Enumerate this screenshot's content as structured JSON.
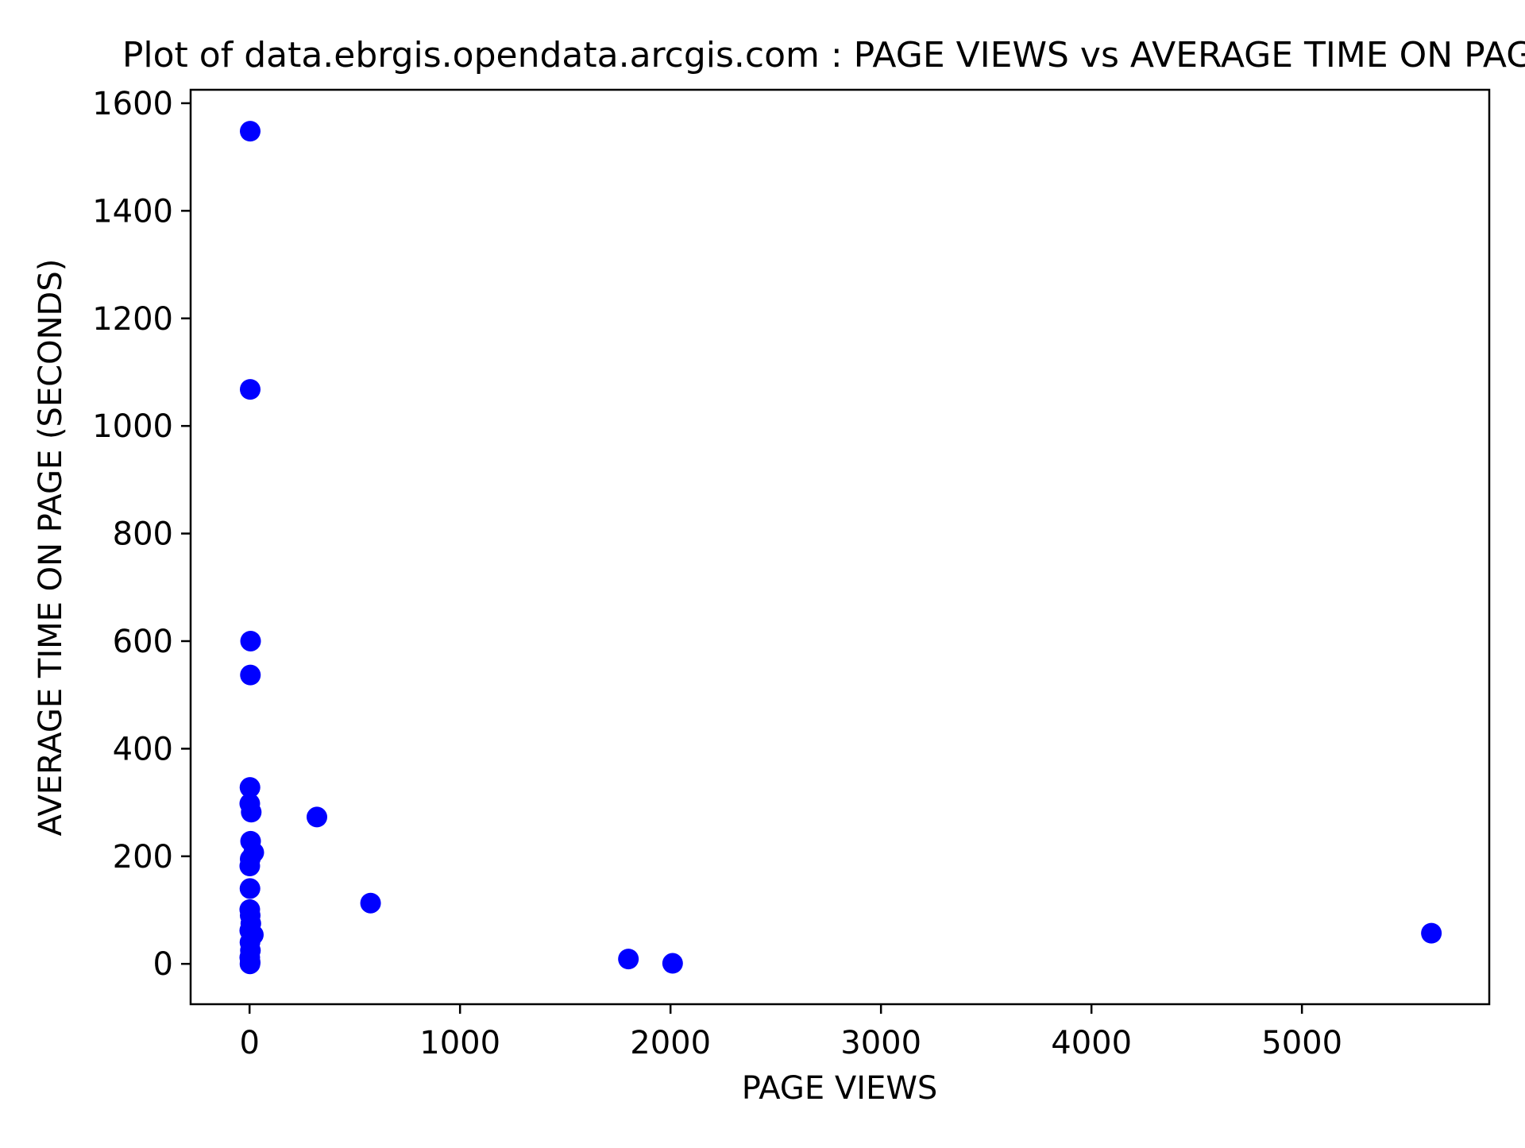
{
  "chart_data": {
    "type": "scatter",
    "title": "Plot of data.ebrgis.opendata.arcgis.com : PAGE VIEWS vs AVERAGE TIME ON PAGE",
    "xlabel": "PAGE VIEWS",
    "ylabel": "AVERAGE TIME ON PAGE (SECONDS)",
    "xlim": [
      -280,
      5890
    ],
    "ylim": [
      -75,
      1625
    ],
    "xticks": [
      0,
      1000,
      2000,
      3000,
      4000,
      5000
    ],
    "yticks": [
      0,
      200,
      400,
      600,
      800,
      1000,
      1200,
      1400,
      1600
    ],
    "grid": false,
    "legend": "none",
    "marker_color": "#0000ff",
    "points": [
      {
        "x": 3,
        "y": 1548
      },
      {
        "x": 3,
        "y": 1068
      },
      {
        "x": 5,
        "y": 600
      },
      {
        "x": 4,
        "y": 537
      },
      {
        "x": 2,
        "y": 328
      },
      {
        "x": 1,
        "y": 298
      },
      {
        "x": 8,
        "y": 282
      },
      {
        "x": 320,
        "y": 273
      },
      {
        "x": 5,
        "y": 228
      },
      {
        "x": 20,
        "y": 207
      },
      {
        "x": 3,
        "y": 195
      },
      {
        "x": 1,
        "y": 182
      },
      {
        "x": 2,
        "y": 140
      },
      {
        "x": 575,
        "y": 113
      },
      {
        "x": 1,
        "y": 101
      },
      {
        "x": 3,
        "y": 90
      },
      {
        "x": 6,
        "y": 75
      },
      {
        "x": 1,
        "y": 62
      },
      {
        "x": 18,
        "y": 54
      },
      {
        "x": 5615,
        "y": 57
      },
      {
        "x": 2,
        "y": 40
      },
      {
        "x": 4,
        "y": 25
      },
      {
        "x": 1,
        "y": 12
      },
      {
        "x": 1800,
        "y": 9
      },
      {
        "x": 3,
        "y": 3
      },
      {
        "x": 2,
        "y": 0
      },
      {
        "x": 2010,
        "y": 1
      }
    ]
  }
}
